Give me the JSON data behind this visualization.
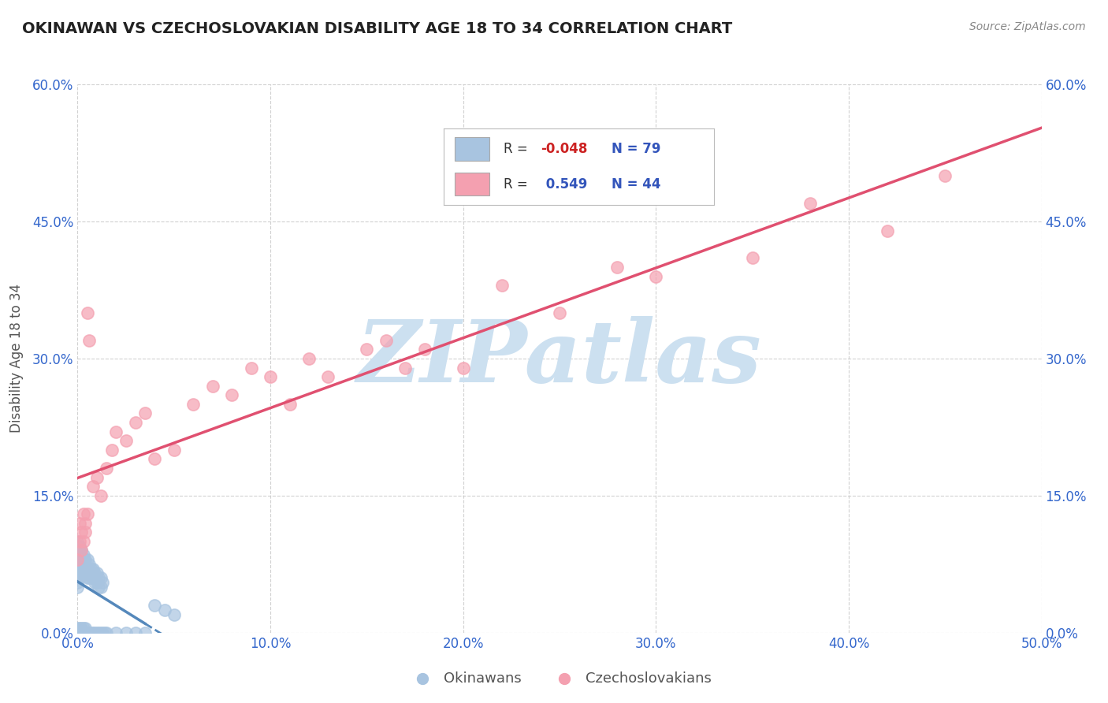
{
  "title": "OKINAWAN VS CZECHOSLOVAKIAN DISABILITY AGE 18 TO 34 CORRELATION CHART",
  "source": "Source: ZipAtlas.com",
  "ylabel": "Disability Age 18 to 34",
  "xmin": 0.0,
  "xmax": 0.5,
  "ymin": 0.0,
  "ymax": 0.6,
  "xticks": [
    0.0,
    0.1,
    0.2,
    0.3,
    0.4,
    0.5
  ],
  "yticks": [
    0.0,
    0.15,
    0.3,
    0.45,
    0.6
  ],
  "xtick_labels": [
    "0.0%",
    "10.0%",
    "20.0%",
    "30.0%",
    "40.0%",
    "50.0%"
  ],
  "ytick_labels": [
    "0.0%",
    "15.0%",
    "30.0%",
    "45.0%",
    "60.0%"
  ],
  "okinawan_R": -0.048,
  "okinawan_N": 79,
  "czechoslovakian_R": 0.549,
  "czechoslovakian_N": 44,
  "okinawan_color": "#a8c4e0",
  "czechoslovakian_color": "#f4a0b0",
  "okinawan_line_color": "#5588bb",
  "czechoslovakian_line_color": "#e05070",
  "background_color": "#ffffff",
  "watermark_color": "#cce0f0",
  "title_color": "#222222",
  "axis_label_color": "#555555",
  "tick_label_color": "#3366cc",
  "grid_color": "#cccccc",
  "legend_text_color": "#3355bb",
  "legend_R_neg_color": "#cc2222",
  "legend_R_pos_color": "#3355bb",
  "okinawan_x": [
    0.0,
    0.0,
    0.0,
    0.0,
    0.0,
    0.0,
    0.0,
    0.0,
    0.0,
    0.0,
    0.0,
    0.001,
    0.001,
    0.001,
    0.001,
    0.001,
    0.001,
    0.001,
    0.001,
    0.002,
    0.002,
    0.002,
    0.002,
    0.002,
    0.003,
    0.003,
    0.003,
    0.003,
    0.004,
    0.004,
    0.004,
    0.005,
    0.005,
    0.005,
    0.006,
    0.006,
    0.006,
    0.007,
    0.007,
    0.008,
    0.008,
    0.009,
    0.009,
    0.01,
    0.01,
    0.011,
    0.011,
    0.012,
    0.012,
    0.013,
    0.0,
    0.0,
    0.0,
    0.001,
    0.001,
    0.002,
    0.002,
    0.003,
    0.003,
    0.004,
    0.004,
    0.005,
    0.006,
    0.007,
    0.008,
    0.009,
    0.01,
    0.011,
    0.012,
    0.013,
    0.014,
    0.015,
    0.02,
    0.025,
    0.03,
    0.035,
    0.04,
    0.045,
    0.05
  ],
  "okinawan_y": [
    0.085,
    0.09,
    0.095,
    0.08,
    0.075,
    0.07,
    0.065,
    0.06,
    0.055,
    0.05,
    0.1,
    0.095,
    0.09,
    0.085,
    0.08,
    0.075,
    0.07,
    0.065,
    0.06,
    0.09,
    0.085,
    0.08,
    0.075,
    0.07,
    0.085,
    0.08,
    0.075,
    0.065,
    0.08,
    0.075,
    0.065,
    0.08,
    0.07,
    0.06,
    0.075,
    0.07,
    0.06,
    0.07,
    0.06,
    0.07,
    0.06,
    0.065,
    0.055,
    0.065,
    0.055,
    0.06,
    0.05,
    0.06,
    0.05,
    0.055,
    0.0,
    0.0,
    0.005,
    0.0,
    0.005,
    0.0,
    0.005,
    0.0,
    0.005,
    0.0,
    0.005,
    0.0,
    0.0,
    0.0,
    0.0,
    0.0,
    0.0,
    0.0,
    0.0,
    0.0,
    0.0,
    0.0,
    0.0,
    0.0,
    0.0,
    0.0,
    0.03,
    0.025,
    0.02
  ],
  "czechoslovakian_x": [
    0.0,
    0.001,
    0.001,
    0.002,
    0.002,
    0.003,
    0.003,
    0.004,
    0.004,
    0.005,
    0.005,
    0.006,
    0.008,
    0.01,
    0.012,
    0.015,
    0.018,
    0.02,
    0.025,
    0.03,
    0.035,
    0.04,
    0.05,
    0.06,
    0.07,
    0.08,
    0.09,
    0.1,
    0.11,
    0.12,
    0.13,
    0.15,
    0.16,
    0.17,
    0.18,
    0.2,
    0.22,
    0.25,
    0.28,
    0.3,
    0.35,
    0.38,
    0.42,
    0.45
  ],
  "czechoslovakian_y": [
    0.08,
    0.1,
    0.12,
    0.09,
    0.11,
    0.1,
    0.13,
    0.12,
    0.11,
    0.13,
    0.35,
    0.32,
    0.16,
    0.17,
    0.15,
    0.18,
    0.2,
    0.22,
    0.21,
    0.23,
    0.24,
    0.19,
    0.2,
    0.25,
    0.27,
    0.26,
    0.29,
    0.28,
    0.25,
    0.3,
    0.28,
    0.31,
    0.32,
    0.29,
    0.31,
    0.29,
    0.38,
    0.35,
    0.4,
    0.39,
    0.41,
    0.47,
    0.44,
    0.5
  ]
}
